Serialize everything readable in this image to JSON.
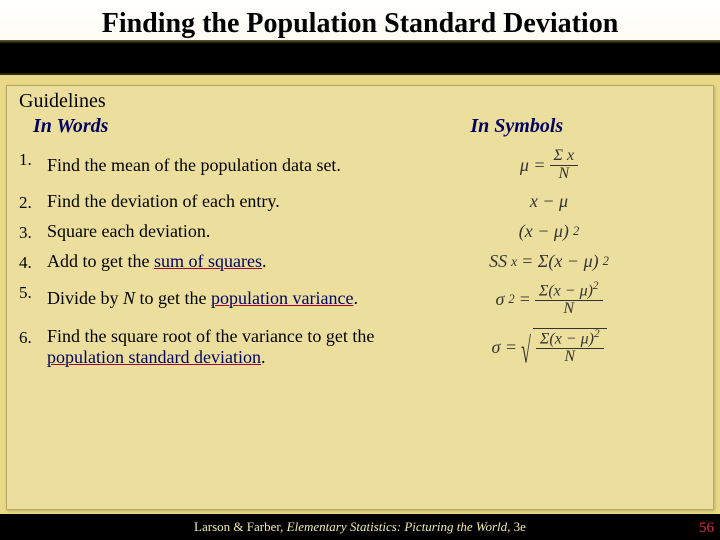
{
  "title": "Finding the Population Standard Deviation",
  "guidelines_label": "Guidelines",
  "col_words": "In Words",
  "col_symbols": "In Symbols",
  "steps": [
    {
      "num": "1.",
      "words_pre": "Find the mean of the population data set.",
      "term": "",
      "words_post": ""
    },
    {
      "num": "2.",
      "words_pre": "Find the deviation of each entry.",
      "term": "",
      "words_post": ""
    },
    {
      "num": "3.",
      "words_pre": "Square each deviation.",
      "term": "",
      "words_post": ""
    },
    {
      "num": "4.",
      "words_pre": "Add to get the ",
      "term": "sum of squares",
      "words_post": "."
    },
    {
      "num": "5.",
      "words_pre": "Divide by ",
      "mid_ital": "N",
      "mid_post": " to get the ",
      "term": "population variance",
      "words_post": "."
    },
    {
      "num": "6.",
      "words_pre": "Find the square root of the variance to get the ",
      "term": "population standard deviation",
      "words_post": "."
    }
  ],
  "formulas": {
    "f1_lhs": "μ =",
    "f1_num": "Σ x",
    "f1_den": "N",
    "f2": "x − μ",
    "f3": "(x − μ)",
    "f3_sup": "2",
    "f4_lhs": "SS",
    "f4_sub": "x",
    "f4_rhs": " = Σ(x − μ)",
    "f4_sup": "2",
    "f5_lhs": "σ",
    "f5_sup_lhs": "2",
    "f5_eq": " = ",
    "f5_num": "Σ(x − μ)",
    "f5_num_sup": "2",
    "f5_den": "N",
    "f6_lhs": "σ = ",
    "f6_num": "Σ(x − μ)",
    "f6_num_sup": "2",
    "f6_den": "N"
  },
  "footer_author": "Larson & Farber, ",
  "footer_title": "Elementary Statistics: Picturing the World",
  "footer_ed": ", 3e",
  "page_number": "56",
  "colors": {
    "slide_bg": "#e8d888",
    "panel_bg": "#ecdf9e",
    "heading_navy": "#000060",
    "underline_red": "#a00030",
    "footer_text": "#efe9b0",
    "pagenum": "#d23040"
  }
}
